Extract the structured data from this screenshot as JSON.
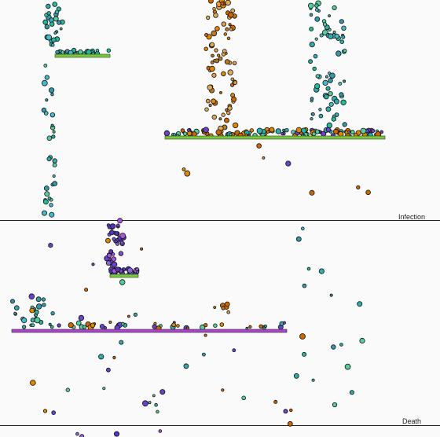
{
  "labels": {
    "infection": "Infection",
    "death": "Death"
  }
}
